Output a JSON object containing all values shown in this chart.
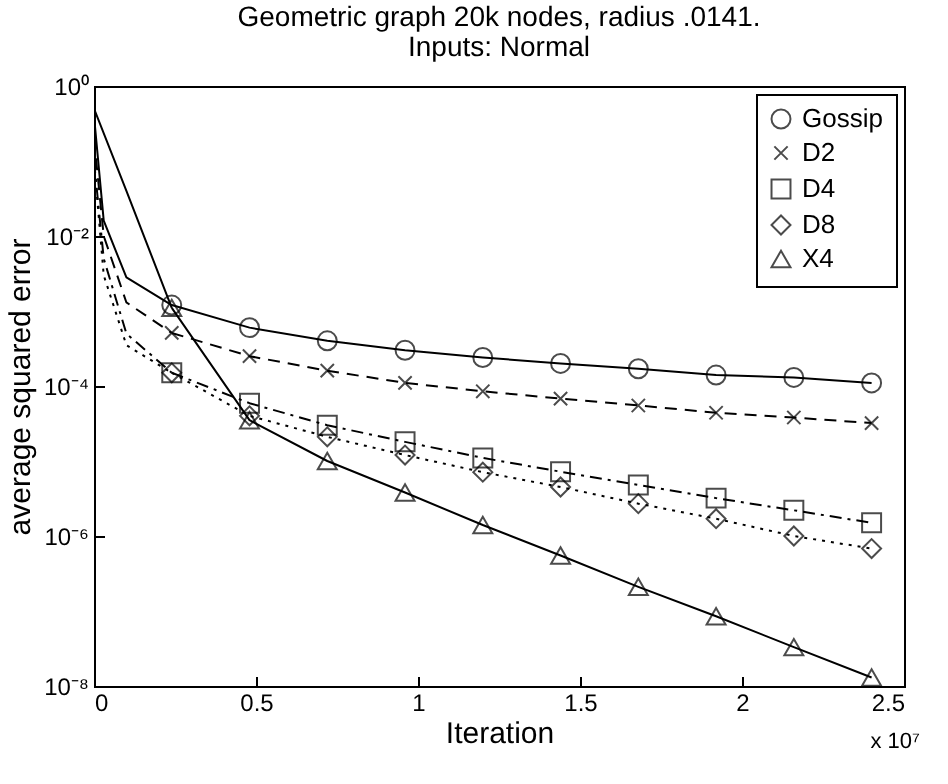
{
  "chart_data": {
    "type": "line",
    "title": "Geometric graph 20k nodes, radius .0141.",
    "subtitle": "Inputs: Normal",
    "xlabel": "Iteration",
    "ylabel": "average squared error",
    "annotations": [
      "x 10⁷"
    ],
    "log": "y",
    "grid": false,
    "legend": "top right",
    "xlim": [
      0,
      2.5
    ],
    "xticks": [
      0,
      0.5,
      1,
      1.5,
      2,
      2.5
    ],
    "ylim": [
      1e-08,
      1
    ],
    "yticks": [
      {
        "value": 1,
        "label": "10⁰"
      },
      {
        "value": 0.01,
        "label": "10⁻²"
      },
      {
        "value": 0.0001,
        "label": "10⁻⁴"
      },
      {
        "value": 1e-06,
        "label": "10⁻⁶"
      },
      {
        "value": 1e-08,
        "label": "10⁻⁸"
      }
    ],
    "series": [
      {
        "name": "Gossip",
        "color": "#000000",
        "marker": "circle",
        "line_style": "solid",
        "x": [
          0.24,
          0.48,
          0.72,
          0.96,
          1.2,
          1.44,
          1.68,
          1.92,
          2.16,
          2.4
        ],
        "values": [
          0.0012,
          0.0006,
          0.0004,
          0.0003,
          0.00024,
          0.0002,
          0.00017,
          0.00014,
          0.00013,
          0.00011
        ]
      },
      {
        "name": "D2",
        "color": "#000000",
        "marker": "cross",
        "line_style": "dashed",
        "x": [
          0.24,
          0.48,
          0.72,
          0.96,
          1.2,
          1.44,
          1.68,
          1.92,
          2.16,
          2.4
        ],
        "values": [
          0.00051,
          0.00025,
          0.00016,
          0.00011,
          8.5e-05,
          6.8e-05,
          5.5e-05,
          4.4e-05,
          3.8e-05,
          3.2e-05
        ]
      },
      {
        "name": "D4",
        "color": "#000000",
        "marker": "square",
        "line_style": "dashdot",
        "x": [
          0.24,
          0.48,
          0.72,
          0.96,
          1.2,
          1.44,
          1.68,
          1.92,
          2.16,
          2.4
        ],
        "values": [
          0.00015,
          5.9e-05,
          3e-05,
          1.8e-05,
          1.1e-05,
          7.2e-06,
          4.8e-06,
          3.2e-06,
          2.2e-06,
          1.5e-06
        ]
      },
      {
        "name": "D8",
        "color": "#000000",
        "marker": "diamond",
        "line_style": "dotted",
        "x": [
          0.24,
          0.48,
          0.72,
          0.96,
          1.2,
          1.44,
          1.68,
          1.92,
          2.16,
          2.4
        ],
        "values": [
          0.00015,
          4e-05,
          2.1e-05,
          1.2e-05,
          7.1e-06,
          4.5e-06,
          2.7e-06,
          1.7e-06,
          1e-06,
          6.8e-07
        ]
      },
      {
        "name": "X4",
        "color": "#000000",
        "marker": "triangle",
        "line_style": "solid",
        "x": [
          0.24,
          0.48,
          0.72,
          0.96,
          1.2,
          1.44,
          1.68,
          1.92,
          2.16,
          2.4
        ],
        "values": [
          0.0011,
          3.5e-05,
          1e-05,
          3.8e-06,
          1.4e-06,
          5.5e-07,
          2.1e-07,
          8.5e-08,
          3.3e-08,
          1.3e-08
        ]
      },
      {
        "color": "#000000",
        "marker": "none",
        "line_style": "solid",
        "x": [
          0,
          0.03,
          0.1,
          0.24
        ],
        "values": [
          0.4,
          0.016,
          0.0028,
          0.0012
        ]
      },
      {
        "color": "#000000",
        "marker": "none",
        "line_style": "dashed",
        "x": [
          0,
          0.03,
          0.1,
          0.24
        ],
        "values": [
          0.2,
          0.01,
          0.0013,
          0.00051
        ]
      },
      {
        "color": "#000000",
        "marker": "none",
        "line_style": "dashdot",
        "x": [
          0,
          0.03,
          0.1,
          0.24
        ],
        "values": [
          0.1,
          0.005,
          0.0005,
          0.00015
        ]
      },
      {
        "color": "#000000",
        "marker": "none",
        "line_style": "dotted",
        "x": [
          0,
          0.03,
          0.1,
          0.24
        ],
        "values": [
          0.1,
          0.003,
          0.00035,
          0.00015
        ]
      },
      {
        "color": "#000000",
        "marker": "none",
        "line_style": "solid",
        "x": [
          0,
          0.1,
          0.24
        ],
        "values": [
          0.5,
          0.04,
          0.0011
        ]
      }
    ]
  }
}
